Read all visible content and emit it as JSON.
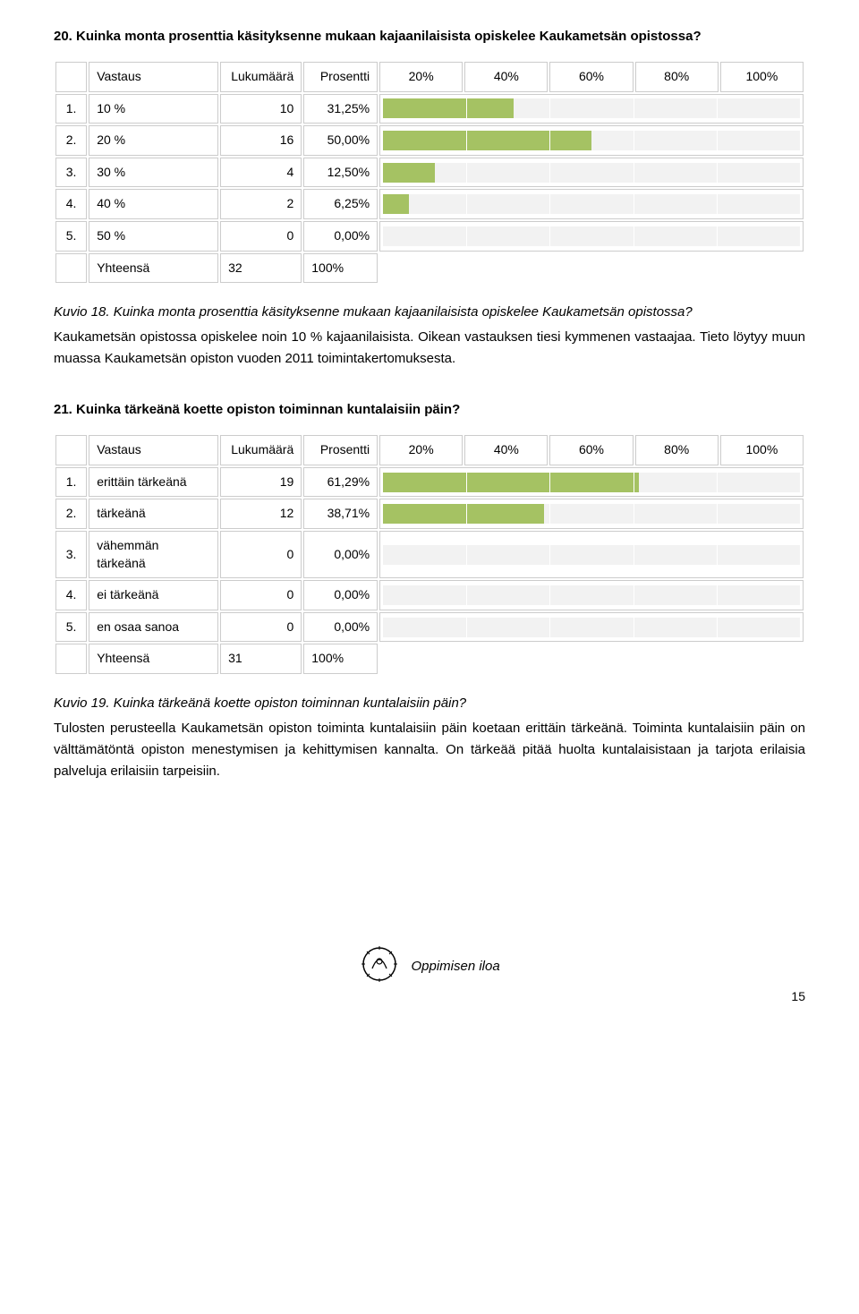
{
  "q20": {
    "heading": "20. Kuinka monta prosenttia käsityksenne mukaan kajaanilaisista opiskelee Kaukametsän opistossa?",
    "header": {
      "label": "Vastaus",
      "count": "Lukumäärä",
      "pct": "Prosentti",
      "ticks": [
        "20%",
        "40%",
        "60%",
        "80%",
        "100%"
      ]
    },
    "rows": [
      {
        "idx": "1.",
        "label": "10 %",
        "count": "10",
        "pct": "31,25%",
        "fill": 31.25
      },
      {
        "idx": "2.",
        "label": "20 %",
        "count": "16",
        "pct": "50,00%",
        "fill": 50.0
      },
      {
        "idx": "3.",
        "label": "30 %",
        "count": "4",
        "pct": "12,50%",
        "fill": 12.5
      },
      {
        "idx": "4.",
        "label": "40 %",
        "count": "2",
        "pct": "6,25%",
        "fill": 6.25
      },
      {
        "idx": "5.",
        "label": "50 %",
        "count": "0",
        "pct": "0,00%",
        "fill": 0.0
      }
    ],
    "total": {
      "label": "Yhteensä",
      "count": "32",
      "pct": "100%"
    },
    "caption": "Kuvio 18. Kuinka monta prosenttia käsityksenne mukaan kajaanilaisista opiskelee Kaukametsän opistossa?",
    "body": "Kaukametsän opistossa opiskelee noin 10 % kajaanilaisista. Oikean vastauksen tiesi kymmenen vastaajaa. Tieto löytyy muun muassa Kaukametsän opiston vuoden 2011 toimintakertomuksesta."
  },
  "q21": {
    "heading": "21. Kuinka tärkeänä koette opiston toiminnan kuntalaisiin päin?",
    "header": {
      "label": "Vastaus",
      "count": "Lukumäärä",
      "pct": "Prosentti",
      "ticks": [
        "20%",
        "40%",
        "60%",
        "80%",
        "100%"
      ]
    },
    "rows": [
      {
        "idx": "1.",
        "label": "erittäin tärkeänä",
        "count": "19",
        "pct": "61,29%",
        "fill": 61.29
      },
      {
        "idx": "2.",
        "label": "tärkeänä",
        "count": "12",
        "pct": "38,71%",
        "fill": 38.71
      },
      {
        "idx": "3.",
        "label": "vähemmän tärkeänä",
        "count": "0",
        "pct": "0,00%",
        "fill": 0.0
      },
      {
        "idx": "4.",
        "label": "ei tärkeänä",
        "count": "0",
        "pct": "0,00%",
        "fill": 0.0
      },
      {
        "idx": "5.",
        "label": "en osaa sanoa",
        "count": "0",
        "pct": "0,00%",
        "fill": 0.0
      }
    ],
    "total": {
      "label": "Yhteensä",
      "count": "31",
      "pct": "100%"
    },
    "caption": "Kuvio 19. Kuinka tärkeänä koette opiston toiminnan kuntalaisiin päin?",
    "body": "Tulosten perusteella Kaukametsän opiston toiminta kuntalaisiin päin koetaan erittäin tärkeänä. Toiminta kuntalaisiin päin on välttämätöntä opiston menestymisen ja kehittymisen kannalta. On tärkeää pitää huolta kuntalaisistaan ja tarjota erilaisia palveluja erilaisiin tarpeisiin."
  },
  "footer": {
    "motto": "Oppimisen iloa",
    "page": "15"
  },
  "style": {
    "bar_fill_color": "#a5c263",
    "bar_track_color": "#f2f2f2",
    "border_color": "#cccccc",
    "tick_positions_pct": [
      20,
      40,
      60,
      80
    ]
  }
}
